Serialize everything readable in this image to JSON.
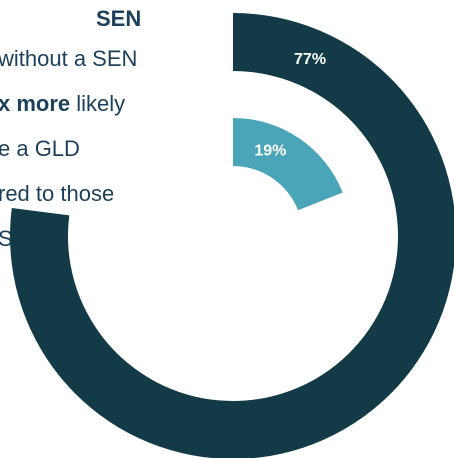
{
  "text": {
    "heading": "SEN",
    "line1": "without a SEN",
    "line2_bold": "x more",
    "line2_rest": " likely",
    "line3": "e a GLD",
    "line4": "red to those",
    "line5": "SEN"
  },
  "chart_data": {
    "type": "pie",
    "variant": "concentric-arc",
    "series": [
      {
        "name": "",
        "value": 77,
        "label": "77%",
        "color": "#123b47"
      },
      {
        "name": "",
        "value": 19,
        "label": "19%",
        "color": "#4aa5b8"
      }
    ],
    "unit": "%"
  }
}
